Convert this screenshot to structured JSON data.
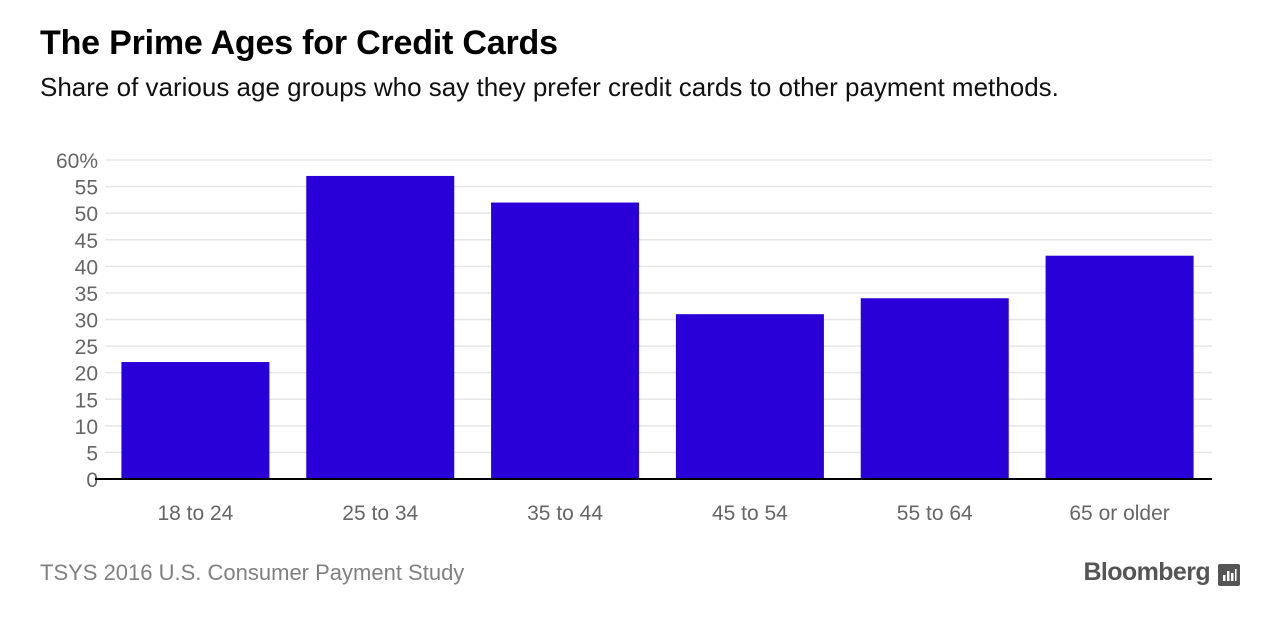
{
  "header": {
    "title": "The Prime Ages for Credit Cards",
    "subtitle": "Share of various age groups who say they prefer credit cards to other payment methods."
  },
  "footer": {
    "source": "TSYS 2016 U.S. Consumer Payment Study",
    "brand": "Bloomberg",
    "brand_icon": "bloomberg-chart-icon"
  },
  "colors": {
    "bar": "#2a00d8",
    "grid": "#e6e6e6",
    "axis": "#000000",
    "tick_text": "#666666"
  },
  "chart_data": {
    "type": "bar",
    "categories": [
      "18 to 24",
      "25 to 34",
      "35 to 44",
      "45 to 54",
      "55 to 64",
      "65 or older"
    ],
    "values": [
      22,
      57,
      52,
      31,
      34,
      42
    ],
    "ylim": [
      0,
      60
    ],
    "yticks": [
      0,
      5,
      10,
      15,
      20,
      25,
      30,
      35,
      40,
      45,
      50,
      55,
      60
    ],
    "ytick_labels": [
      "0",
      "5",
      "10",
      "15",
      "20",
      "25",
      "30",
      "35",
      "40",
      "45",
      "50",
      "55",
      "60%"
    ],
    "xlabel": "",
    "ylabel": "",
    "grid": true,
    "legend": "none"
  }
}
